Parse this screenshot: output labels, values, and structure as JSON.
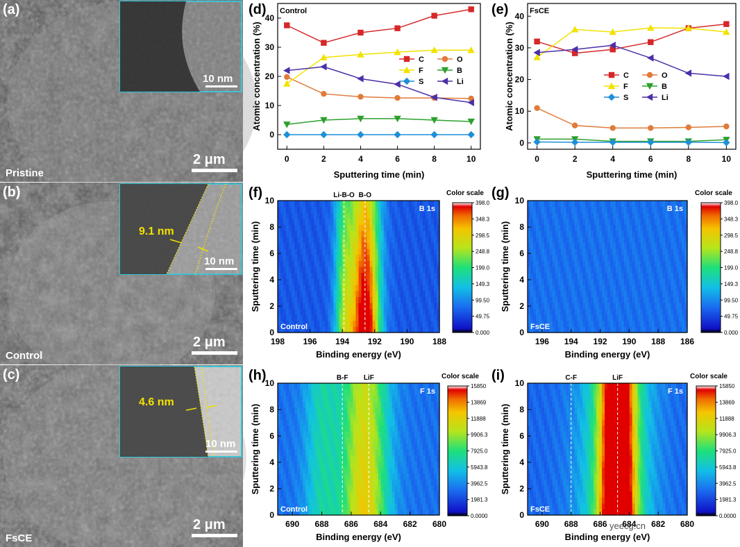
{
  "figure": {
    "sem_panels": [
      {
        "letter": "(a)",
        "label": "Pristine",
        "scale": "2 μm",
        "inset_scale": "10 nm",
        "inset_thickness": ""
      },
      {
        "letter": "(b)",
        "label": "Control",
        "scale": "2 μm",
        "inset_scale": "10 nm",
        "inset_thickness": "9.1 nm"
      },
      {
        "letter": "(c)",
        "label": "FsCE",
        "scale": "2 μm",
        "inset_scale": "10 nm",
        "inset_thickness": "4.6 nm"
      }
    ],
    "watermark": "yeecg.cn"
  },
  "chart_data": [
    {
      "type": "line",
      "panel": "(d)",
      "title": "Control",
      "xlabel": "Sputtering time (min)",
      "ylabel": "Atomic concentration (%)",
      "x": [
        0,
        2,
        4,
        6,
        8,
        10
      ],
      "xlim": [
        -0.5,
        10.5
      ],
      "ylim": [
        -5,
        45
      ],
      "xticks": [
        0,
        2,
        4,
        6,
        8,
        10
      ],
      "yticks": [
        0,
        10,
        20,
        30,
        40
      ],
      "series": [
        {
          "name": "C",
          "color": "#d62728",
          "marker": "square",
          "values": [
            37.5,
            31.5,
            35,
            36.5,
            40.8,
            43
          ]
        },
        {
          "name": "O",
          "color": "#e07b39",
          "marker": "circle",
          "values": [
            19.8,
            14,
            13,
            12.6,
            12.6,
            12.4
          ]
        },
        {
          "name": "F",
          "color": "#f2e200",
          "marker": "triangle-up",
          "values": [
            17.5,
            26.5,
            27.5,
            28.3,
            29,
            29
          ]
        },
        {
          "name": "B",
          "color": "#2ca02c",
          "marker": "triangle-down",
          "values": [
            3.5,
            5,
            5.5,
            5.5,
            5,
            4.5
          ]
        },
        {
          "name": "S",
          "color": "#1f8fd6",
          "marker": "diamond",
          "values": [
            0,
            0,
            0,
            0,
            0,
            0
          ]
        },
        {
          "name": "Li",
          "color": "#4b2fa8",
          "marker": "triangle-left",
          "values": [
            22,
            23.3,
            19.2,
            17.3,
            12.8,
            11
          ]
        }
      ]
    },
    {
      "type": "line",
      "panel": "(e)",
      "title": "FsCE",
      "xlabel": "Sputtering time (min)",
      "ylabel": "Atomic concentration (%)",
      "x": [
        0,
        2,
        4,
        6,
        8,
        10
      ],
      "xlim": [
        -0.5,
        10.5
      ],
      "ylim": [
        -2,
        44
      ],
      "xticks": [
        0,
        2,
        4,
        6,
        8,
        10
      ],
      "yticks": [
        0,
        10,
        20,
        30,
        40
      ],
      "series": [
        {
          "name": "C",
          "color": "#d62728",
          "marker": "square",
          "values": [
            32,
            28.3,
            29.5,
            31.8,
            36.2,
            37.5
          ]
        },
        {
          "name": "O",
          "color": "#e07b39",
          "marker": "circle",
          "values": [
            11,
            5.5,
            4.7,
            4.7,
            4.9,
            5.2
          ]
        },
        {
          "name": "F",
          "color": "#f2e200",
          "marker": "triangle-up",
          "values": [
            27,
            35.8,
            35,
            36.3,
            36.2,
            35
          ]
        },
        {
          "name": "B",
          "color": "#2ca02c",
          "marker": "triangle-down",
          "values": [
            1.2,
            1.2,
            0.5,
            0.5,
            0.5,
            1
          ]
        },
        {
          "name": "S",
          "color": "#1f8fd6",
          "marker": "diamond",
          "values": [
            0.3,
            0.2,
            0.2,
            0.2,
            0.2,
            0.1
          ]
        },
        {
          "name": "Li",
          "color": "#4b2fa8",
          "marker": "triangle-left",
          "values": [
            28.5,
            29.5,
            30.8,
            26.8,
            22,
            21
          ]
        }
      ]
    },
    {
      "type": "heatmap",
      "panel": "(f)",
      "corner_label": "Control",
      "region": "B 1s",
      "xlabel": "Binding energy (eV)",
      "ylabel": "Sputtering time (min)",
      "xlim": [
        198,
        188
      ],
      "xticks": [
        198,
        196,
        194,
        192,
        190,
        188
      ],
      "ylim": [
        0,
        10
      ],
      "yticks": [
        0,
        2,
        4,
        6,
        8,
        10
      ],
      "peak_labels": [
        {
          "text": "Li-B-O",
          "energy": 193.9
        },
        {
          "text": "B-O",
          "energy": 192.6
        }
      ],
      "peaks": [
        {
          "center": 192.6,
          "width": 0.9,
          "amp_top": 0.62,
          "amp_bottom": 1.0
        },
        {
          "center": 193.9,
          "width": 0.6,
          "amp_top": 0.3,
          "amp_bottom": 0.42
        }
      ],
      "base_level": 0.15,
      "colorbar": {
        "title": "Color scale",
        "ticks": [
          "398.0",
          "348.3",
          "298.5",
          "248.8",
          "199.0",
          "149.3",
          "99.50",
          "49.75",
          "0.000"
        ]
      }
    },
    {
      "type": "heatmap",
      "panel": "(g)",
      "corner_label": "FsCE",
      "region": "B 1s",
      "xlabel": "Binding energy (eV)",
      "ylabel": "Sputtering time (min)",
      "xlim": [
        197,
        186
      ],
      "xticks": [
        196,
        194,
        192,
        190,
        188,
        186
      ],
      "ylim": [
        0,
        10
      ],
      "yticks": [
        0,
        2,
        4,
        6,
        8,
        10
      ],
      "peak_labels": [],
      "peaks": [],
      "base_level": 0.2,
      "colorbar": {
        "title": "Color scale",
        "ticks": [
          "398.0",
          "348.3",
          "298.5",
          "248.8",
          "199.0",
          "149.3",
          "99.50",
          "49.75",
          "0.000"
        ]
      }
    },
    {
      "type": "heatmap",
      "panel": "(h)",
      "corner_label": "Control",
      "region": "F 1s",
      "xlabel": "Binding energy (eV)",
      "ylabel": "Sputtering time (min)",
      "xlim": [
        691,
        680
      ],
      "xticks": [
        690,
        688,
        686,
        684,
        682,
        680
      ],
      "ylim": [
        0,
        10
      ],
      "yticks": [
        0,
        2,
        4,
        6,
        8,
        10
      ],
      "peak_labels": [
        {
          "text": "B-F",
          "energy": 686.6
        },
        {
          "text": "LiF",
          "energy": 684.8
        }
      ],
      "peaks": [
        {
          "center": 685.1,
          "width": 1.6,
          "amp_top": 0.48,
          "amp_bottom": 0.58
        },
        {
          "center": 688.0,
          "width": 1.2,
          "amp_top": 0.22,
          "amp_bottom": 0.22
        }
      ],
      "base_level": 0.2,
      "colorbar": {
        "title": "Color scale",
        "ticks": [
          "15850",
          "13869",
          "11888",
          "9906.3",
          "7925.0",
          "5943.8",
          "3962.5",
          "1981.3",
          "0.0000"
        ]
      }
    },
    {
      "type": "heatmap",
      "panel": "(i)",
      "corner_label": "FsCE",
      "region": "F 1s",
      "xlabel": "Binding energy (eV)",
      "ylabel": "Sputtering time (min)",
      "xlim": [
        691,
        680
      ],
      "xticks": [
        690,
        688,
        686,
        684,
        682,
        680
      ],
      "ylim": [
        0,
        10
      ],
      "yticks": [
        0,
        2,
        4,
        6,
        8,
        10
      ],
      "peak_labels": [
        {
          "text": "C-F",
          "energy": 688.0
        },
        {
          "text": "LiF",
          "energy": 684.8
        }
      ],
      "peaks": [
        {
          "center": 684.8,
          "width": 1.1,
          "amp_top": 0.82,
          "amp_bottom": 0.98
        },
        {
          "center": 684.9,
          "width": 2.4,
          "amp_top": 0.35,
          "amp_bottom": 0.4
        }
      ],
      "base_level": 0.18,
      "colorbar": {
        "title": "Color scale",
        "ticks": [
          "15850",
          "13869",
          "11888",
          "9906.3",
          "7925.0",
          "5943.8",
          "3962.5",
          "1981.3",
          "0.0000"
        ]
      }
    }
  ]
}
